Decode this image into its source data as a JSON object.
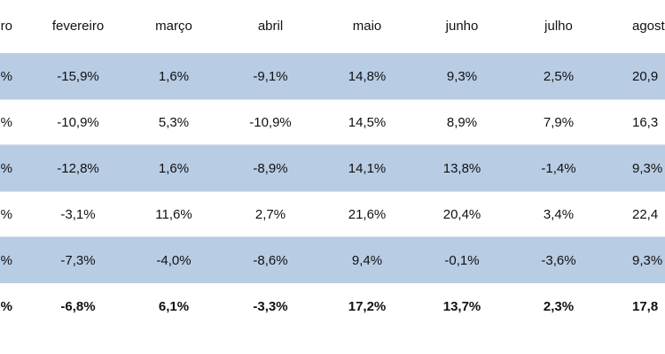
{
  "table": {
    "header": [
      "ro",
      "fevereiro",
      "março",
      "abril",
      "maio",
      "junho",
      "julho",
      "agost"
    ],
    "rows": [
      [
        "%",
        "-15,9%",
        "1,6%",
        "-9,1%",
        "14,8%",
        "9,3%",
        "2,5%",
        "20,9"
      ],
      [
        "%",
        "-10,9%",
        "5,3%",
        "-10,9%",
        "14,5%",
        "8,9%",
        "7,9%",
        "16,3"
      ],
      [
        "%",
        "-12,8%",
        "1,6%",
        "-8,9%",
        "14,1%",
        "13,8%",
        "-1,4%",
        "9,3%"
      ],
      [
        "%",
        "-3,1%",
        "11,6%",
        "2,7%",
        "21,6%",
        "20,4%",
        "3,4%",
        "22,4"
      ],
      [
        "%",
        "-7,3%",
        "-4,0%",
        "-8,6%",
        "9,4%",
        "-0,1%",
        "-3,6%",
        "9,3%"
      ],
      [
        "%",
        "-6,8%",
        "6,1%",
        "-3,3%",
        "17,2%",
        "13,7%",
        "2,3%",
        "17,8"
      ]
    ]
  }
}
